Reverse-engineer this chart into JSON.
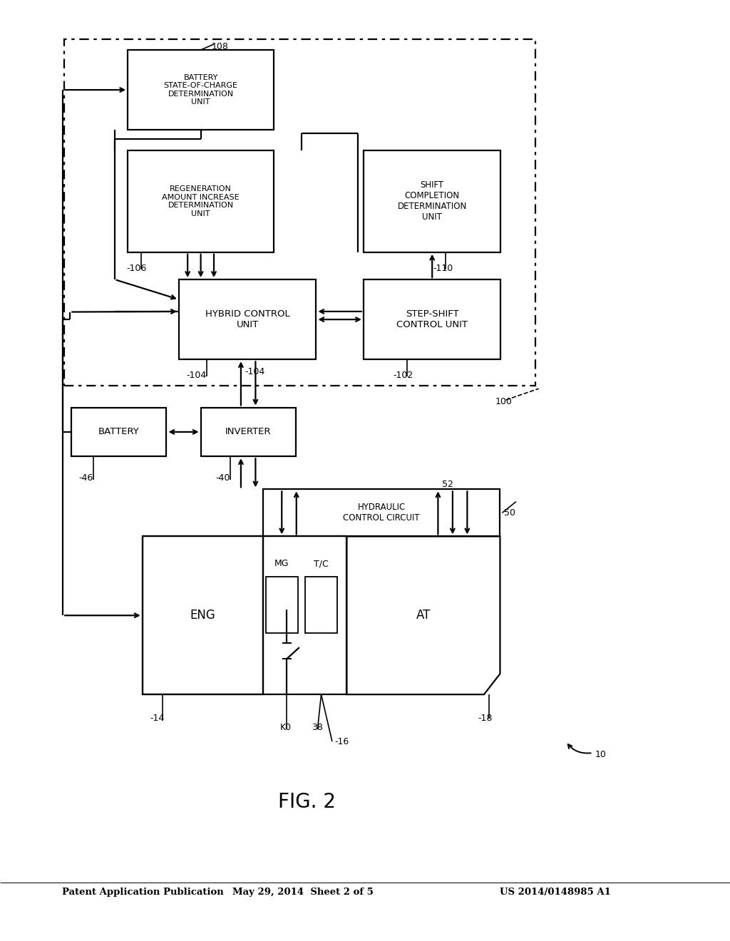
{
  "bg": "#ffffff",
  "fg": "#000000",
  "header_left": "Patent Application Publication",
  "header_center": "May 29, 2014  Sheet 2 of 5",
  "header_right": "US 2014/0148985 A1",
  "fig_title": "FIG. 2",
  "label_eng": "ENG",
  "label_at": "AT",
  "label_mg": "MG",
  "label_tc": "T/C",
  "label_k0": "K0",
  "label_hcc": "HYDRAULIC\nCONTROL CIRCUIT",
  "label_battery": "BATTERY",
  "label_inverter": "INVERTER",
  "label_hcu": "HYBRID CONTROL\nUNIT",
  "label_sscu": "STEP-SHIFT\nCONTROL UNIT",
  "label_regen": "REGENERATION\nAMOUNT INCREASE\nDETERMINATION\nUNIT",
  "label_shift": "SHIFT\nCOMPLETION\nDETERMINATION\nUNIT",
  "label_bsoc": "BATTERY\nSTATE-OF-CHARGE\nDETERMINATION\nUNIT",
  "refs": {
    "r10": "10",
    "r14": "-14",
    "r16": "-16",
    "r18": "-18",
    "r38": "38",
    "r40": "-40",
    "r46": "-46",
    "r50": "50",
    "r52": "52",
    "r100": "100",
    "r102": "-102",
    "r104": "-104",
    "r106": "-106",
    "r108": "108",
    "r110": "-110"
  }
}
